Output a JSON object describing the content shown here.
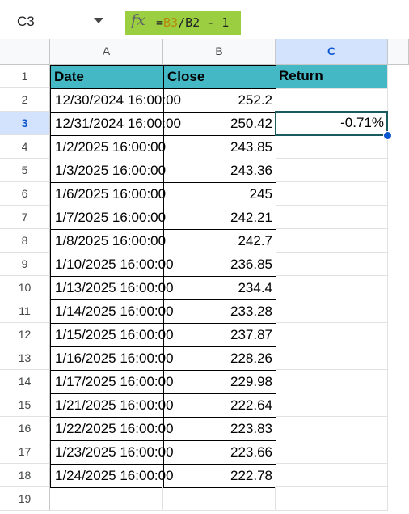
{
  "name_box": {
    "value": "C3"
  },
  "formula_bar": {
    "icon": "fx-icon",
    "prefix": "=",
    "ref1": "B3",
    "rest": "/B2 - 1"
  },
  "columns": [
    "A",
    "B",
    "C"
  ],
  "rows": [
    "1",
    "2",
    "3",
    "4",
    "5",
    "6",
    "7",
    "8",
    "9",
    "10",
    "11",
    "12",
    "13",
    "14",
    "15",
    "16",
    "17",
    "18",
    "19"
  ],
  "selection": {
    "cell": "C3",
    "row": "3",
    "column": "C"
  },
  "colors": {
    "header_fill": "#45b8c6",
    "selection_border": "#1a5b5f",
    "formula_highlight": "#9bcf41"
  },
  "table": {
    "headers": [
      "Date",
      "Close",
      "Return"
    ],
    "rows": [
      {
        "date": "12/30/2024 16:00:00",
        "close": "252.2",
        "ret": ""
      },
      {
        "date": "12/31/2024 16:00:00",
        "close": "250.42",
        "ret": "-0.71%"
      },
      {
        "date": "1/2/2025 16:00:00",
        "close": "243.85",
        "ret": ""
      },
      {
        "date": "1/3/2025 16:00:00",
        "close": "243.36",
        "ret": ""
      },
      {
        "date": "1/6/2025 16:00:00",
        "close": "245",
        "ret": ""
      },
      {
        "date": "1/7/2025 16:00:00",
        "close": "242.21",
        "ret": ""
      },
      {
        "date": "1/8/2025 16:00:00",
        "close": "242.7",
        "ret": ""
      },
      {
        "date": "1/10/2025 16:00:00",
        "close": "236.85",
        "ret": ""
      },
      {
        "date": "1/13/2025 16:00:00",
        "close": "234.4",
        "ret": ""
      },
      {
        "date": "1/14/2025 16:00:00",
        "close": "233.28",
        "ret": ""
      },
      {
        "date": "1/15/2025 16:00:00",
        "close": "237.87",
        "ret": ""
      },
      {
        "date": "1/16/2025 16:00:00",
        "close": "228.26",
        "ret": ""
      },
      {
        "date": "1/17/2025 16:00:00",
        "close": "229.98",
        "ret": ""
      },
      {
        "date": "1/21/2025 16:00:00",
        "close": "222.64",
        "ret": ""
      },
      {
        "date": "1/22/2025 16:00:00",
        "close": "223.83",
        "ret": ""
      },
      {
        "date": "1/23/2025 16:00:00",
        "close": "223.66",
        "ret": ""
      },
      {
        "date": "1/24/2025 16:00:00",
        "close": "222.78",
        "ret": ""
      }
    ]
  }
}
